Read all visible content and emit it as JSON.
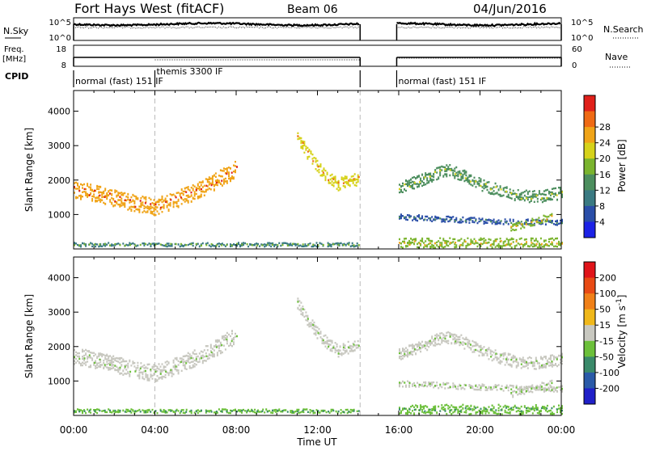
{
  "header": {
    "station": "Fort Hays West (fitACF)",
    "beam": "Beam 06",
    "date": "04/Jun/2016"
  },
  "top_panels": {
    "nsky_label": "N.Sky",
    "nsky_ticks": [
      "10^5",
      "10^0"
    ],
    "nsearch_label": "N.Search",
    "nsearch_ticks": [
      "10^5",
      "10^0"
    ],
    "freq_label_line1": "Freq.",
    "freq_label_line2": "[MHz]",
    "freq_ticks": [
      "18",
      "8"
    ],
    "nave_label": "Nave",
    "nave_ticks": [
      "60",
      "0"
    ],
    "cpid_label": "CPID",
    "cpid_segments": [
      {
        "label": "normal (fast) 151 IF",
        "start_hour": 0.0,
        "end_hour": 4.0
      },
      {
        "label": "themis 3300 IF",
        "start_hour": 4.0,
        "end_hour": 14.1
      },
      {
        "label": "normal (fast) 151 IF",
        "start_hour": 15.9,
        "end_hour": 24.0
      }
    ],
    "data_gap_hours": [
      14.1,
      15.9
    ]
  },
  "chart_data": [
    {
      "type": "heatmap",
      "name": "power",
      "ylabel": "Slant Range [km]",
      "yticks": [
        1000,
        2000,
        3000,
        4000
      ],
      "ylim": [
        0,
        4600
      ],
      "xlim": [
        0,
        24
      ],
      "colorbar_label": "Power [dB]",
      "colorbar_ticks": [
        "4",
        "8",
        "12",
        "16",
        "20",
        "24",
        "28"
      ],
      "colorbar_colors": [
        "#1c22e6",
        "#2a4ea8",
        "#3a7a82",
        "#4c8e5e",
        "#7ab42e",
        "#d6d21a",
        "#f0a418",
        "#ef6a14",
        "#e0201a"
      ],
      "bands": [
        {
          "hours": [
            0.0,
            1.0,
            2.0,
            3.0,
            4.0,
            5.0,
            6.0,
            7.0,
            8.0
          ],
          "ranges": [
            1750,
            1650,
            1500,
            1350,
            1250,
            1450,
            1700,
            2000,
            2350
          ],
          "width": 350,
          "level": 6
        },
        {
          "hours": [
            11.0,
            11.5,
            12.0,
            12.5,
            13.0,
            13.5,
            14.0
          ],
          "ranges": [
            3300,
            2800,
            2400,
            2100,
            1900,
            2000,
            2050
          ],
          "width": 250,
          "level": 5
        },
        {
          "hours": [
            16.0,
            17.0,
            18.0,
            18.5,
            19.0,
            20.0,
            21.0,
            22.0,
            23.0,
            24.0
          ],
          "ranges": [
            1800,
            2000,
            2250,
            2300,
            2200,
            1900,
            1700,
            1550,
            1550,
            1650
          ],
          "width": 250,
          "level": 3
        },
        {
          "hours": [
            16.0,
            18.0,
            20.0,
            22.0,
            24.0
          ],
          "ranges": [
            950,
            900,
            850,
            800,
            800
          ],
          "width": 120,
          "level": 1
        },
        {
          "hours": [
            21.5,
            22.5,
            23.5
          ],
          "ranges": [
            650,
            800,
            950
          ],
          "width": 150,
          "level": 4
        },
        {
          "hours": [
            0.0,
            2.0,
            4.0,
            6.0,
            8.0,
            10.0,
            12.0,
            14.0
          ],
          "ranges": [
            150,
            150,
            150,
            150,
            150,
            150,
            150,
            150
          ],
          "width": 80,
          "level": 2
        },
        {
          "hours": [
            16.0,
            18.0,
            20.0,
            22.0,
            24.0
          ],
          "ranges": [
            200,
            200,
            200,
            200,
            200
          ],
          "width": 200,
          "level": 4
        }
      ]
    },
    {
      "type": "heatmap",
      "name": "velocity",
      "ylabel": "Slant Range [km]",
      "yticks": [
        1000,
        2000,
        3000,
        4000
      ],
      "ylim": [
        0,
        4600
      ],
      "xlim": [
        0,
        24
      ],
      "xticks": [
        "00:00",
        "04:00",
        "08:00",
        "12:00",
        "16:00",
        "20:00",
        "00:00"
      ],
      "xlabel": "Time UT",
      "colorbar_label": "Velocity [m s^-1]",
      "colorbar_ticks": [
        "200",
        "100",
        "50",
        "15",
        "-15",
        "-50",
        "-100",
        "-200"
      ],
      "colorbar_colors": [
        "#2020c8",
        "#2a5aa8",
        "#3a8a6a",
        "#6cc03a",
        "#c8c8c0",
        "#f0b81a",
        "#f08018",
        "#e84a14",
        "#e0141a"
      ],
      "bands": [
        {
          "hours": [
            0.0,
            1.0,
            2.0,
            3.0,
            4.0,
            5.0,
            6.0,
            7.0,
            8.0
          ],
          "ranges": [
            1750,
            1650,
            1500,
            1350,
            1250,
            1450,
            1700,
            2000,
            2350
          ],
          "width": 350,
          "level": 4
        },
        {
          "hours": [
            11.0,
            11.5,
            12.0,
            12.5,
            13.0,
            13.5,
            14.0
          ],
          "ranges": [
            3300,
            2800,
            2400,
            2100,
            1900,
            2000,
            2050
          ],
          "width": 250,
          "level": 4
        },
        {
          "hours": [
            16.0,
            17.0,
            18.0,
            18.5,
            19.0,
            20.0,
            21.0,
            22.0,
            23.0,
            24.0
          ],
          "ranges": [
            1800,
            2000,
            2250,
            2300,
            2200,
            1900,
            1700,
            1550,
            1550,
            1650
          ],
          "width": 250,
          "level": 4
        },
        {
          "hours": [
            16.0,
            18.0,
            20.0,
            22.0,
            24.0
          ],
          "ranges": [
            950,
            900,
            850,
            800,
            800
          ],
          "width": 120,
          "level": 4
        },
        {
          "hours": [
            21.5,
            22.5,
            23.5
          ],
          "ranges": [
            650,
            800,
            950
          ],
          "width": 150,
          "level": 4
        },
        {
          "hours": [
            0.0,
            2.0,
            4.0,
            6.0,
            8.0,
            10.0,
            12.0,
            14.0
          ],
          "ranges": [
            150,
            150,
            150,
            150,
            150,
            150,
            150,
            150
          ],
          "width": 80,
          "level": 3
        },
        {
          "hours": [
            16.0,
            18.0,
            20.0,
            22.0,
            24.0
          ],
          "ranges": [
            200,
            200,
            200,
            200,
            200
          ],
          "width": 200,
          "level": 3
        }
      ]
    }
  ]
}
